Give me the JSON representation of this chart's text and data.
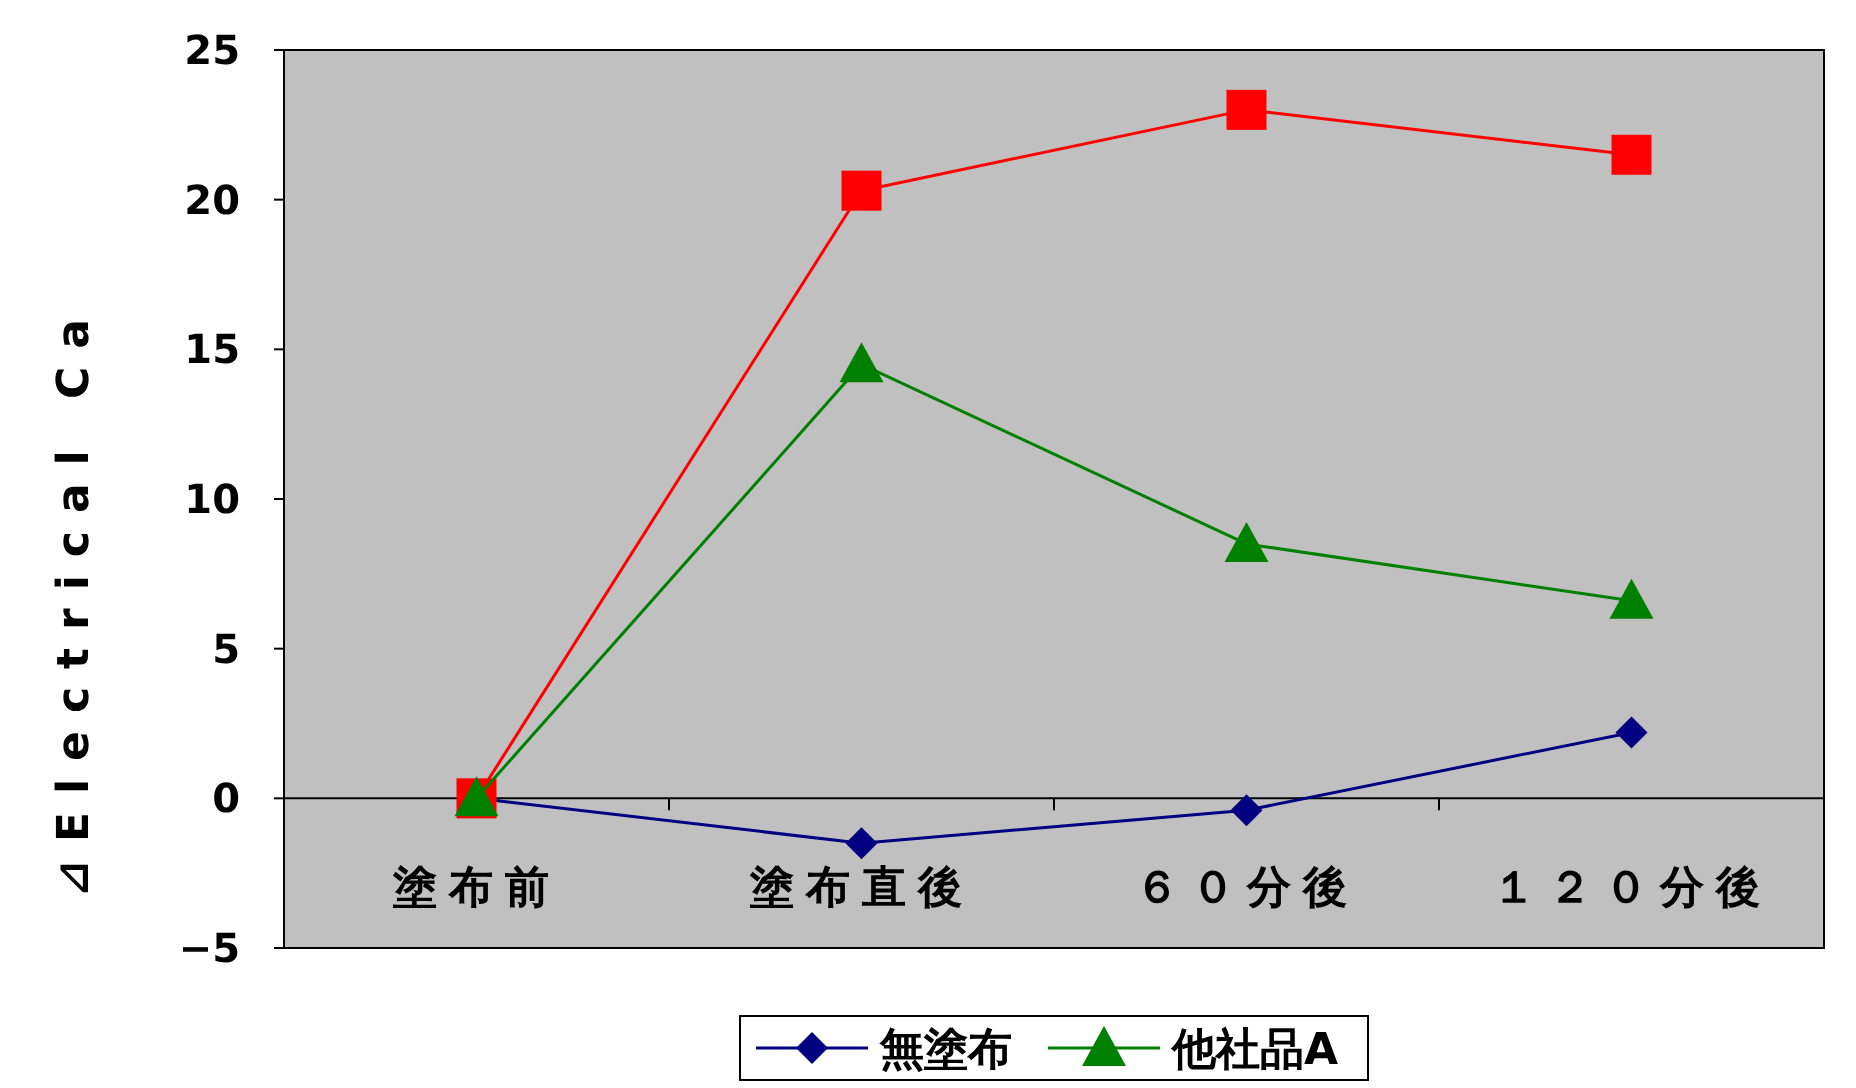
{
  "chart_data": {
    "type": "line",
    "ylabel": "⊿Electrical Ca",
    "categories": [
      "塗布前",
      "塗布直後",
      "６０分後",
      "１２０分後"
    ],
    "ylim": [
      -5,
      25
    ],
    "yticks": [
      -5,
      0,
      5,
      10,
      15,
      20,
      25
    ],
    "grid": false,
    "legend": "bottom",
    "ref_lines": [
      {
        "axis": "y",
        "value": 0,
        "color": "#000000"
      }
    ],
    "series": [
      {
        "name": "無塗布",
        "color": "#000080",
        "marker": "diamond",
        "values": [
          0,
          -1.5,
          -0.4,
          2.2
        ]
      },
      {
        "color": "#ff0000",
        "marker": "square",
        "values": [
          0,
          20.3,
          23,
          21.5
        ]
      },
      {
        "name": "他社品A",
        "color": "#008000",
        "marker": "triangle",
        "values": [
          0,
          14.5,
          8.5,
          6.6
        ]
      }
    ]
  }
}
